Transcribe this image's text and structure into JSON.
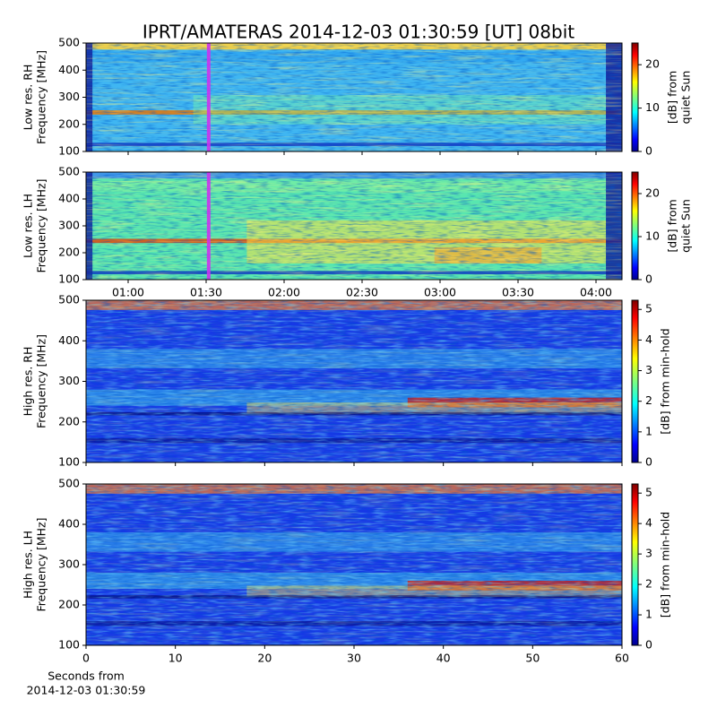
{
  "chart_data": [
    {
      "type": "heatmap",
      "title": "IPRT/AMATERAS 2014-12-03 01:30:59 [UT]   08bit",
      "ylabel": [
        "Low res. RH",
        "Frequency [MHz]"
      ],
      "ylim": [
        100,
        500
      ],
      "yticks": [
        100,
        200,
        300,
        400,
        500
      ],
      "xlim": [
        43.8,
        250
      ],
      "marker_x": 90.98,
      "marker_color": "#cc33ee",
      "colormap": "jet",
      "colorbar_label": [
        "[dB] from",
        "quiet Sun"
      ],
      "clim": [
        0,
        25
      ],
      "cticks": [
        0,
        10,
        20
      ]
    },
    {
      "type": "heatmap",
      "ylabel": [
        "Low res. LH",
        "Frequency [MHz]"
      ],
      "ylim": [
        100,
        500
      ],
      "yticks": [
        100,
        200,
        300,
        400,
        500
      ],
      "xlim": [
        43.8,
        250
      ],
      "marker_x": 90.98,
      "marker_color": "#cc33ee",
      "xticks": [
        {
          "value": 60,
          "label": "01:00"
        },
        {
          "value": 90,
          "label": "01:30"
        },
        {
          "value": 120,
          "label": "02:00"
        },
        {
          "value": 150,
          "label": "02:30"
        },
        {
          "value": 180,
          "label": "03:00"
        },
        {
          "value": 210,
          "label": "03:30"
        },
        {
          "value": 240,
          "label": "04:00"
        }
      ],
      "colormap": "jet",
      "colorbar_label": [
        "[dB] from",
        "quiet Sun"
      ],
      "clim": [
        0,
        25
      ],
      "cticks": [
        0,
        10,
        20
      ]
    },
    {
      "type": "heatmap",
      "ylabel": [
        "High res. RH",
        "Frequency [MHz]"
      ],
      "ylim": [
        100,
        500
      ],
      "yticks": [
        100,
        200,
        300,
        400,
        500
      ],
      "xlim": [
        0,
        60
      ],
      "xticks": [
        0,
        10,
        20,
        30,
        40,
        50,
        60
      ],
      "xtick_labels": false,
      "colormap": "jet",
      "colorbar_label": [
        "[dB] from min-hold"
      ],
      "clim": [
        0,
        5.3
      ],
      "cticks": [
        0,
        1,
        2,
        3,
        4,
        5
      ]
    },
    {
      "type": "heatmap",
      "ylabel": [
        "High res. LH",
        "Frequency [MHz]"
      ],
      "ylim": [
        100,
        500
      ],
      "yticks": [
        100,
        200,
        300,
        400,
        500
      ],
      "xlim": [
        0,
        60
      ],
      "xticks": [
        0,
        10,
        20,
        30,
        40,
        50,
        60
      ],
      "xtick_labels": true,
      "xlabel": [
        "Seconds from",
        "2014-12-03 01:30:59"
      ],
      "colormap": "jet",
      "colorbar_label": [
        "[dB] from min-hold"
      ],
      "clim": [
        0,
        5.3
      ],
      "cticks": [
        0,
        1,
        2,
        3,
        4,
        5
      ]
    }
  ]
}
